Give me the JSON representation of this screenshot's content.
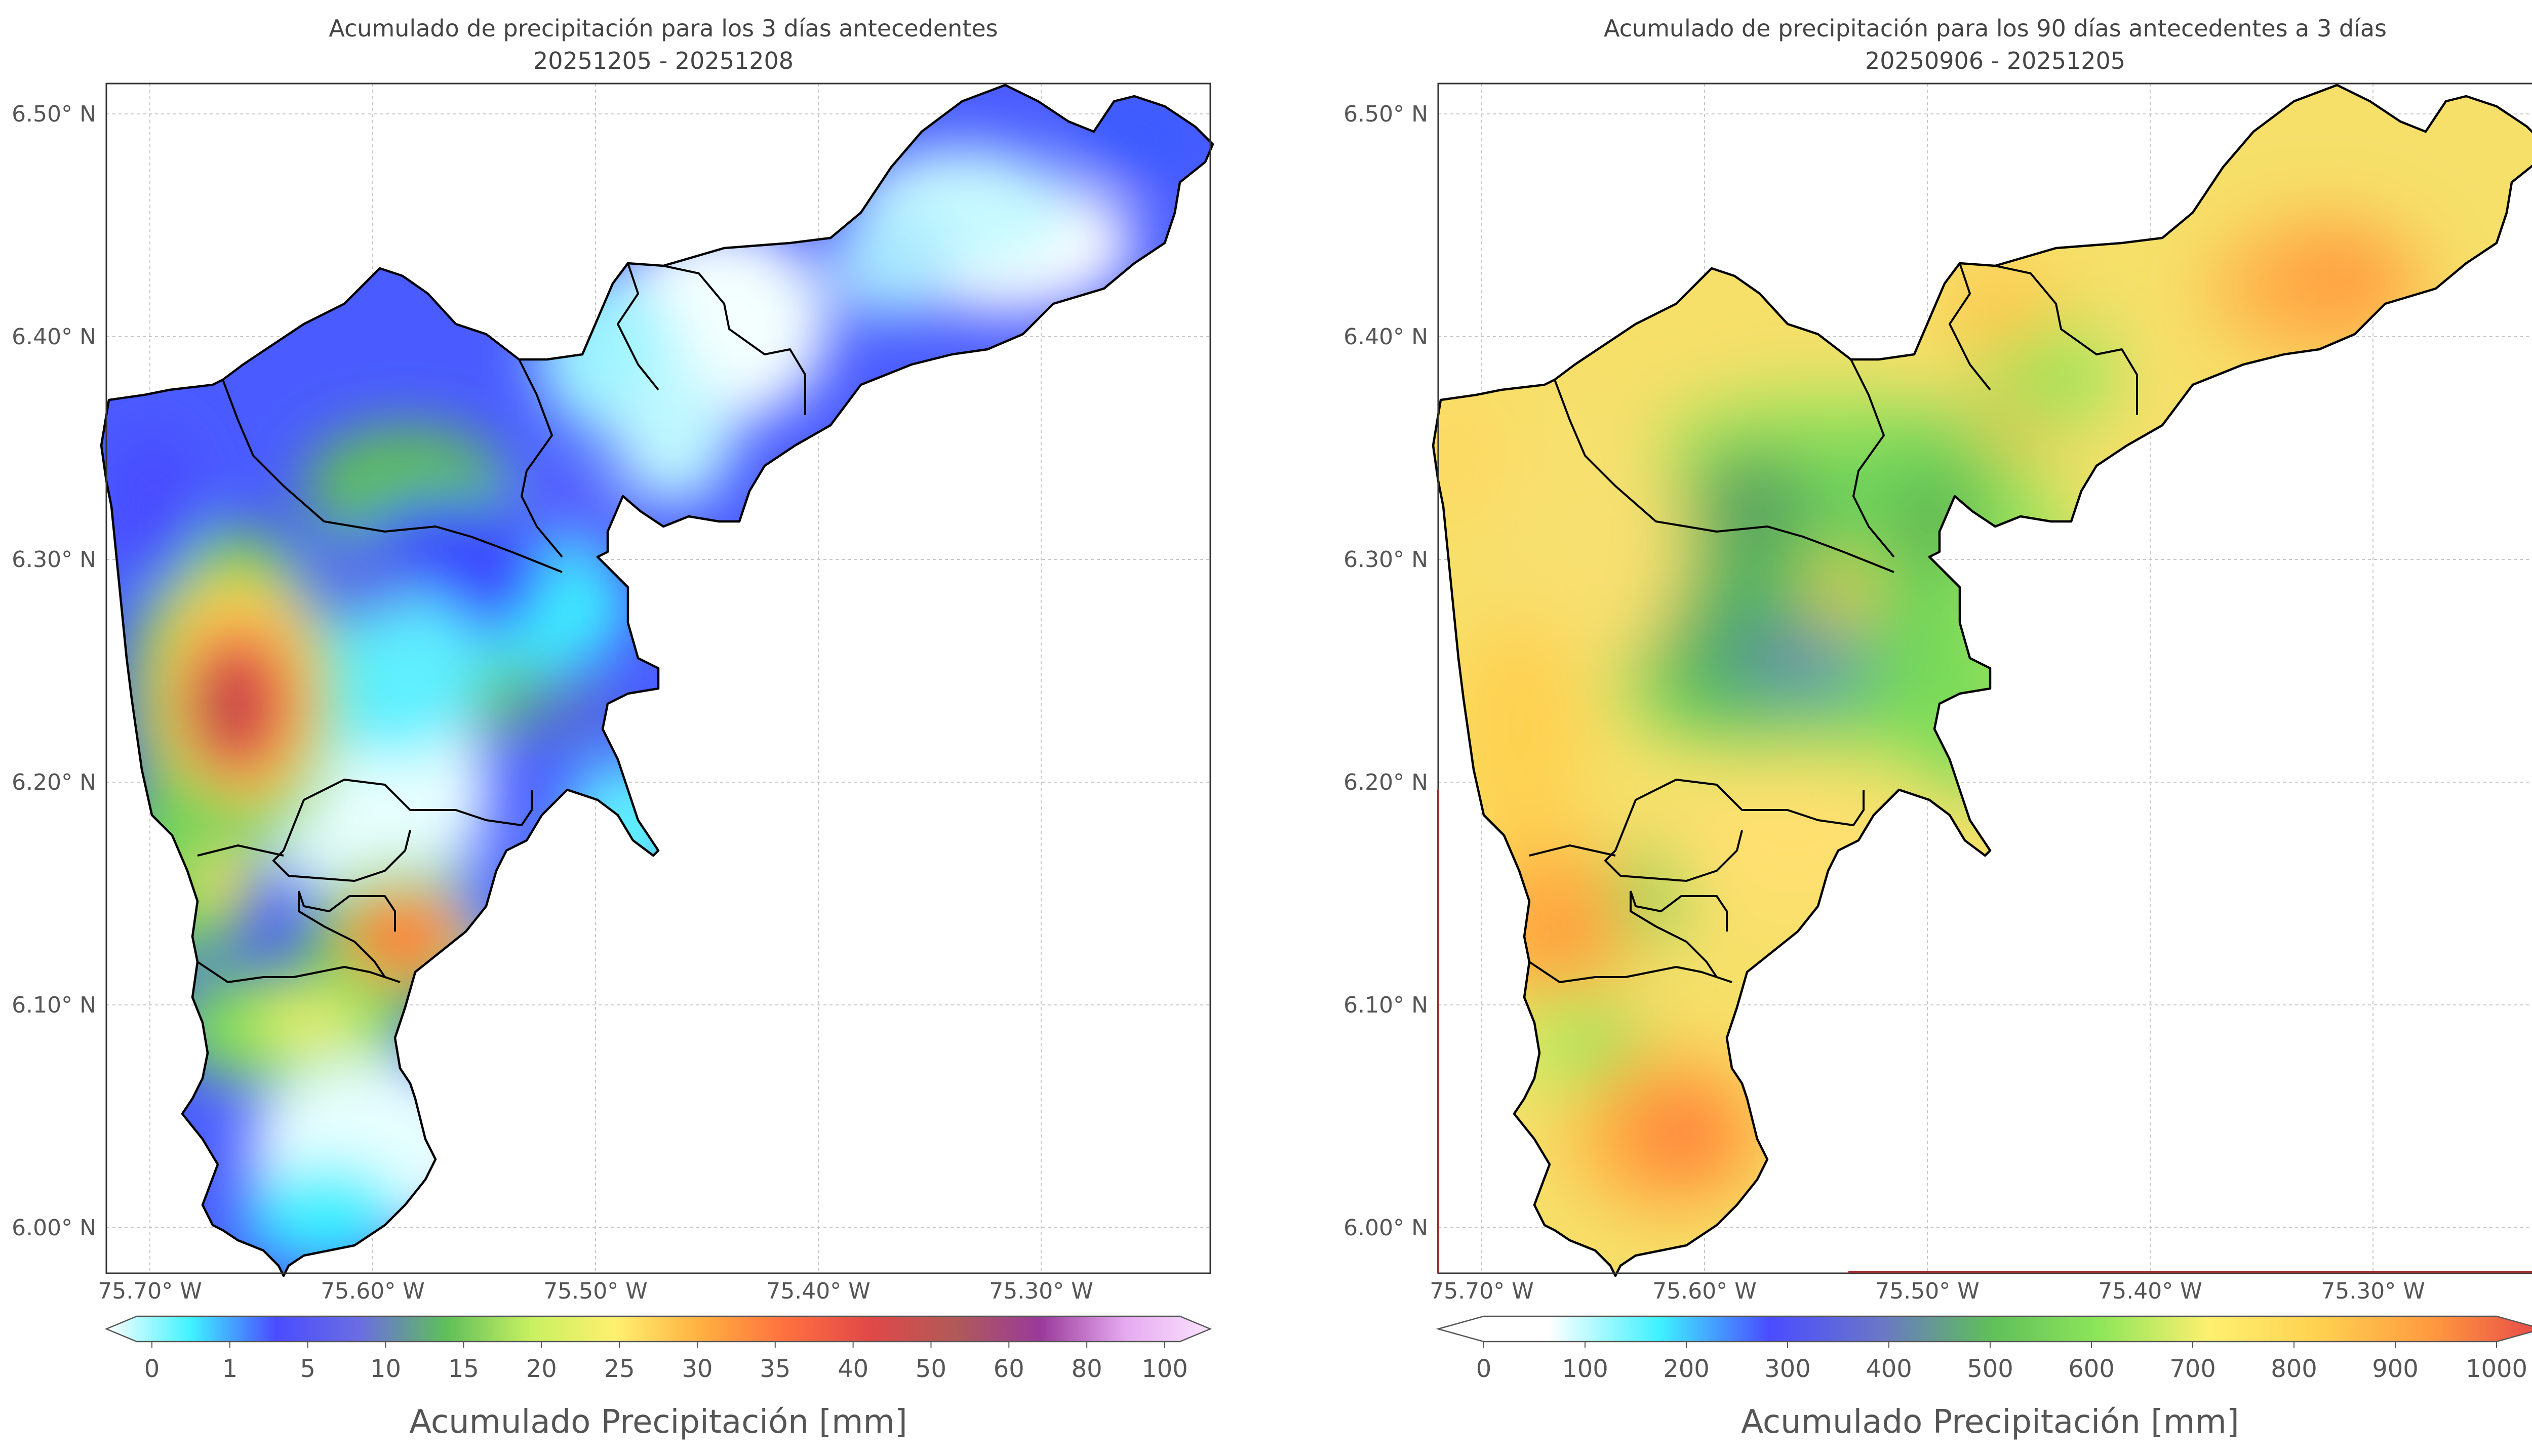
{
  "panels": [
    {
      "id": "left",
      "title_line1": "Acumulado de precipitación para los 3 días antecedentes",
      "title_line2": "20251205 - 20251208",
      "colorbar_label": "Acumulado Precipitación [mm]",
      "colorbar_ticks": [
        "0",
        "1",
        "5",
        "10",
        "15",
        "20",
        "25",
        "30",
        "35",
        "40",
        "50",
        "60",
        "80",
        "100"
      ],
      "colormap": [
        "#ffffff",
        "#3ff2ff",
        "#4a4cff",
        "#6b6ee0",
        "#5fbf5a",
        "#c8f060",
        "#fff070",
        "#ffb040",
        "#ff7040",
        "#e04848",
        "#b05a58",
        "#9a3a9a",
        "#e6aaf0",
        "#fbe3ff"
      ]
    },
    {
      "id": "right",
      "title_line1": "Acumulado de precipitación para los 90 días antecedentes a 3 días",
      "title_line2": "20250906 - 20251205",
      "colorbar_label": "Acumulado Precipitación [mm]",
      "colorbar_ticks": [
        "0",
        "100",
        "200",
        "300",
        "400",
        "500",
        "600",
        "700",
        "800",
        "900",
        "1000"
      ],
      "colormap": [
        "#ffffff",
        "#ffffff",
        "#3ff2ff",
        "#4a4cff",
        "#6a76c8",
        "#5fbf5a",
        "#8fe65a",
        "#fff070",
        "#ffd050",
        "#ff9a40",
        "#e84848"
      ]
    }
  ],
  "axes": {
    "lat_labels": [
      "6.50° N",
      "6.40° N",
      "6.30° N",
      "6.20° N",
      "6.10° N",
      "6.00° N"
    ],
    "lon_labels": [
      "75.70° W",
      "75.60° W",
      "75.50° W",
      "75.40° W",
      "75.30° W"
    ],
    "lat_values": [
      6.5,
      6.4,
      6.3,
      6.2,
      6.1,
      6.0
    ],
    "lon_values": [
      -75.7,
      -75.6,
      -75.5,
      -75.4,
      -75.3
    ],
    "lat_range": [
      5.977,
      6.513
    ],
    "lon_range": [
      -75.72,
      -75.224
    ]
  }
}
